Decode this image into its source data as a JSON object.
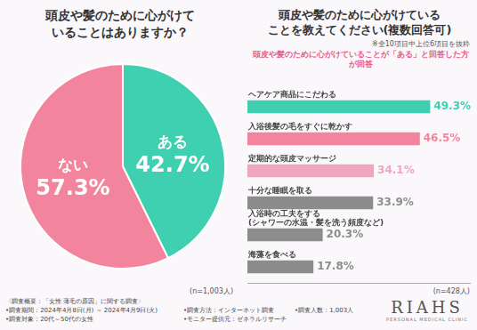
{
  "chart_data": [
    {
      "type": "pie",
      "title": [
        "頭皮や髪のために心がけて",
        "いることはありますか？"
      ],
      "categories": [
        "ある",
        "ない"
      ],
      "values": [
        42.7,
        57.3
      ],
      "value_labels": [
        "42.7%",
        "57.3%"
      ],
      "colors": [
        "#3fcfb1",
        "#f2849d"
      ],
      "data_labels": true,
      "annotations": [
        "(n=1,003人)"
      ]
    },
    {
      "type": "bar",
      "orientation": "horizontal",
      "title": [
        "頭皮や髪のために心がけている",
        "ことを教えてください(複数回答可)"
      ],
      "subtitle": "頭皮や髪のために心がけていることが「ある」と回答した方が回答",
      "annotations": [
        "※全10項目中上位6項目を抜粋",
        "(n=428人)"
      ],
      "categories": [
        "ヘアケア商品にこだわる",
        "入浴後髪の毛をすぐに乾かす",
        "定期的な頭皮マッサージ",
        "十分な睡眠を取る",
        [
          "入浴時の工夫をする",
          "(シャワーの水温・髪を洗う頻度など)"
        ],
        "海藻を食べる"
      ],
      "values": [
        49.3,
        46.5,
        34.1,
        33.9,
        20.3,
        17.8
      ],
      "value_labels": [
        "49.3%",
        "46.5%",
        "34.1%",
        "33.9%",
        "20.3%",
        "17.8%"
      ],
      "colors": [
        "#3fcfb1",
        "#f2849d",
        "#eea6bf",
        "#8c8c8c",
        "#8c8c8c",
        "#8c8c8c"
      ],
      "xlim": [
        0,
        60
      ],
      "tick_labels": false,
      "grid": false,
      "data_labels": true
    }
  ],
  "survey": {
    "heading": "〈調査概要：「女性 薄毛の原因」に関する調査〉",
    "items": [
      "•調査期間：2024年4月8日(月) ～ 2024年4月9日(火)",
      "•調査方法：インターネット調査",
      "•調査人数：1,003人",
      "•調査対象：20代～50代の女性",
      "•モニター提供元：ゼネラルリサーチ"
    ]
  },
  "brand": {
    "name": "RIAHS",
    "tagline": "PERSONAL MEDICAL CLINIC"
  }
}
